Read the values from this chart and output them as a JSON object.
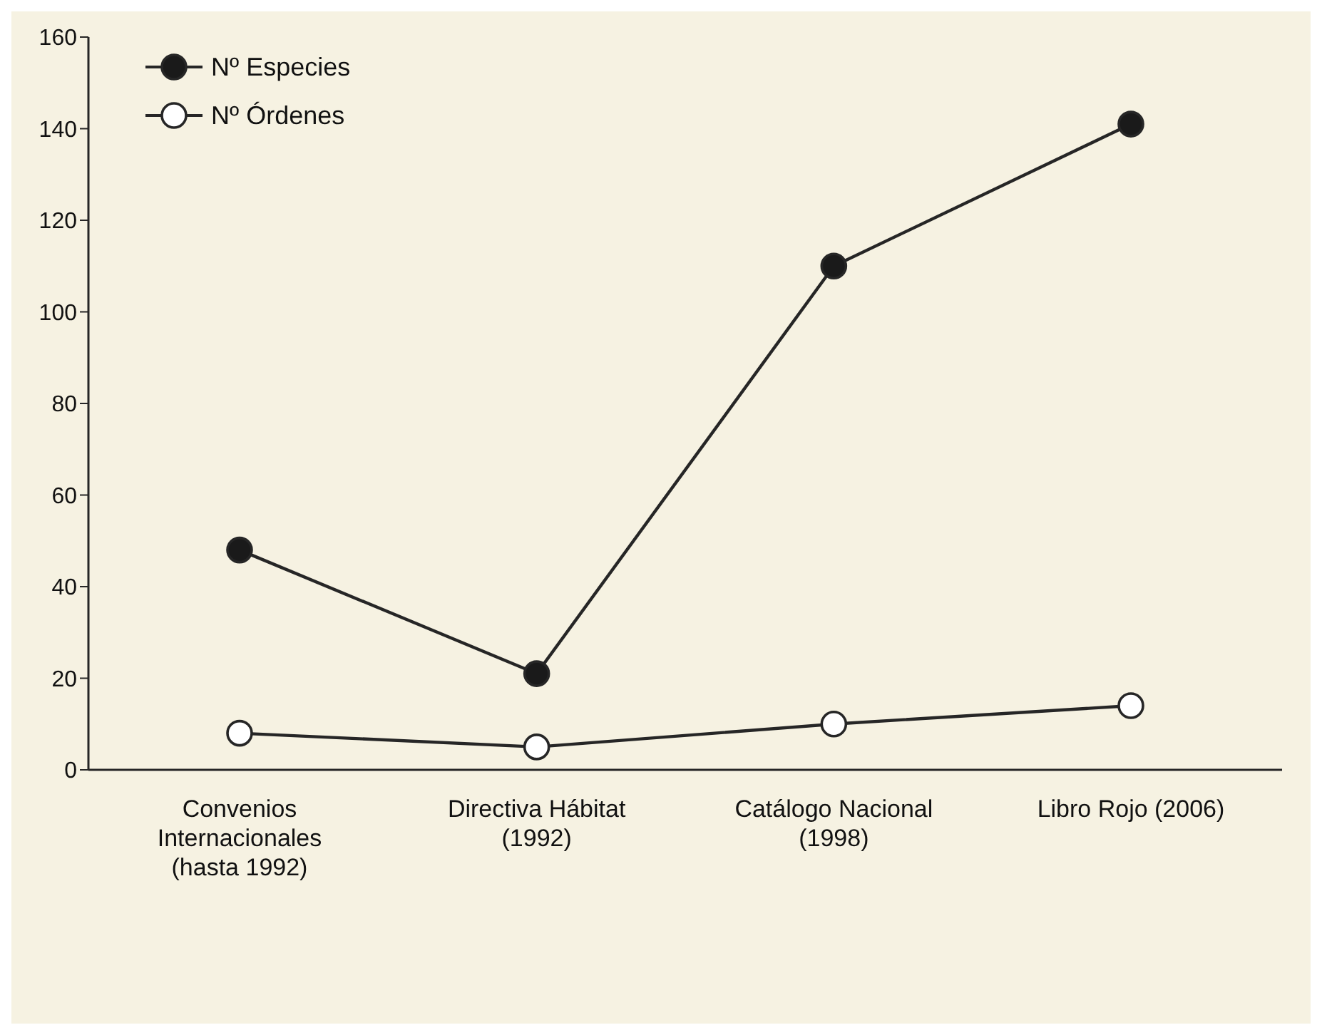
{
  "chart_data": {
    "type": "line",
    "categories": [
      "Convenios Internacionales (hasta 1992)",
      "Directiva Hábitat (1992)",
      "Catálogo Nacional (1998)",
      "Libro Rojo (2006)"
    ],
    "series": [
      {
        "name": "Nº Especies",
        "color": "#1a1a1a",
        "values": [
          48,
          21,
          110,
          141
        ]
      },
      {
        "name": "Nº Órdenes",
        "color": "#ffffff",
        "values": [
          8,
          5,
          10,
          14
        ]
      }
    ],
    "ylim": [
      0,
      160
    ],
    "yticks": [
      0,
      20,
      40,
      60,
      80,
      100,
      120,
      140,
      160
    ],
    "grid": false,
    "legend": "top left",
    "marker": "circle",
    "line_style": "solid"
  }
}
